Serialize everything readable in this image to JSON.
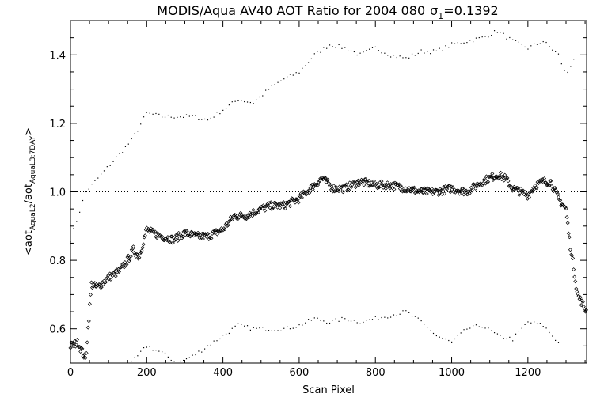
{
  "chart_data": {
    "type": "scatter",
    "title": "MODIS/Aqua AV40 AOT Ratio for 2004 080",
    "title_sigma_symbol": "σ",
    "title_sigma_sub": "1",
    "title_sigma_value": "=0.1392",
    "xlabel": "Scan Pixel",
    "ylabel_main": "<aot",
    "ylabel_sub1": "AquaL2",
    "ylabel_mid": "/aot",
    "ylabel_sub2": "AquaL3:7DAY",
    "ylabel_end": ">",
    "xlim": [
      0,
      1354
    ],
    "ylim": [
      0.5,
      1.5
    ],
    "x_ticks": [
      0,
      200,
      400,
      600,
      800,
      1000,
      1200
    ],
    "x_tick_labels": [
      "0",
      "200",
      "400",
      "600",
      "800",
      "1000",
      "1200"
    ],
    "y_ticks": [
      0.6,
      0.8,
      1.0,
      1.2,
      1.4
    ],
    "y_tick_labels": [
      "0.6",
      "0.8",
      "1.0",
      "1.2",
      "1.4"
    ],
    "reference_line_y": 1.0,
    "mean_ratio_curve": {
      "x": [
        0,
        20,
        40,
        55,
        70,
        100,
        130,
        150,
        165,
        180,
        200,
        215,
        240,
        270,
        300,
        330,
        360,
        400,
        430,
        460,
        500,
        530,
        560,
        600,
        640,
        660,
        690,
        720,
        760,
        800,
        840,
        880,
        920,
        960,
        1000,
        1040,
        1080,
        1120,
        1140,
        1160,
        1180,
        1200,
        1220,
        1240,
        1260,
        1280,
        1300,
        1310,
        1320,
        1330,
        1354
      ],
      "y": [
        0.55,
        0.56,
        0.51,
        0.73,
        0.72,
        0.75,
        0.77,
        0.8,
        0.83,
        0.81,
        0.89,
        0.88,
        0.87,
        0.86,
        0.88,
        0.87,
        0.87,
        0.89,
        0.93,
        0.93,
        0.95,
        0.96,
        0.96,
        0.98,
        1.02,
        1.04,
        1.01,
        1.01,
        1.03,
        1.02,
        1.02,
        1.01,
        1.0,
        1.0,
        1.01,
        1.0,
        1.03,
        1.05,
        1.04,
        1.01,
        1.0,
        0.99,
        1.02,
        1.03,
        1.03,
        0.98,
        0.95,
        0.85,
        0.78,
        0.7,
        0.65
      ]
    },
    "upper_dotted_curve": {
      "x": [
        0,
        40,
        80,
        120,
        160,
        200,
        240,
        280,
        320,
        360,
        400,
        440,
        480,
        520,
        560,
        600,
        640,
        680,
        720,
        760,
        800,
        840,
        880,
        920,
        960,
        1000,
        1040,
        1080,
        1120,
        1160,
        1200,
        1240,
        1280,
        1300,
        1320
      ],
      "y": [
        0.86,
        1.0,
        1.05,
        1.1,
        1.15,
        1.23,
        1.22,
        1.22,
        1.22,
        1.21,
        1.24,
        1.27,
        1.26,
        1.3,
        1.33,
        1.35,
        1.4,
        1.43,
        1.42,
        1.4,
        1.42,
        1.4,
        1.39,
        1.41,
        1.41,
        1.43,
        1.44,
        1.45,
        1.47,
        1.44,
        1.42,
        1.44,
        1.4,
        1.34,
        1.39
      ]
    },
    "lower_dotted_curve": {
      "x": [
        160,
        200,
        240,
        280,
        320,
        360,
        400,
        440,
        480,
        520,
        560,
        600,
        640,
        680,
        720,
        760,
        800,
        840,
        880,
        920,
        960,
        1000,
        1040,
        1080,
        1120,
        1160,
        1200,
        1240,
        1280
      ],
      "y": [
        0.5,
        0.55,
        0.53,
        0.5,
        0.52,
        0.55,
        0.58,
        0.61,
        0.6,
        0.6,
        0.6,
        0.61,
        0.63,
        0.62,
        0.63,
        0.62,
        0.63,
        0.64,
        0.65,
        0.62,
        0.58,
        0.56,
        0.6,
        0.61,
        0.58,
        0.57,
        0.62,
        0.61,
        0.56
      ]
    }
  }
}
